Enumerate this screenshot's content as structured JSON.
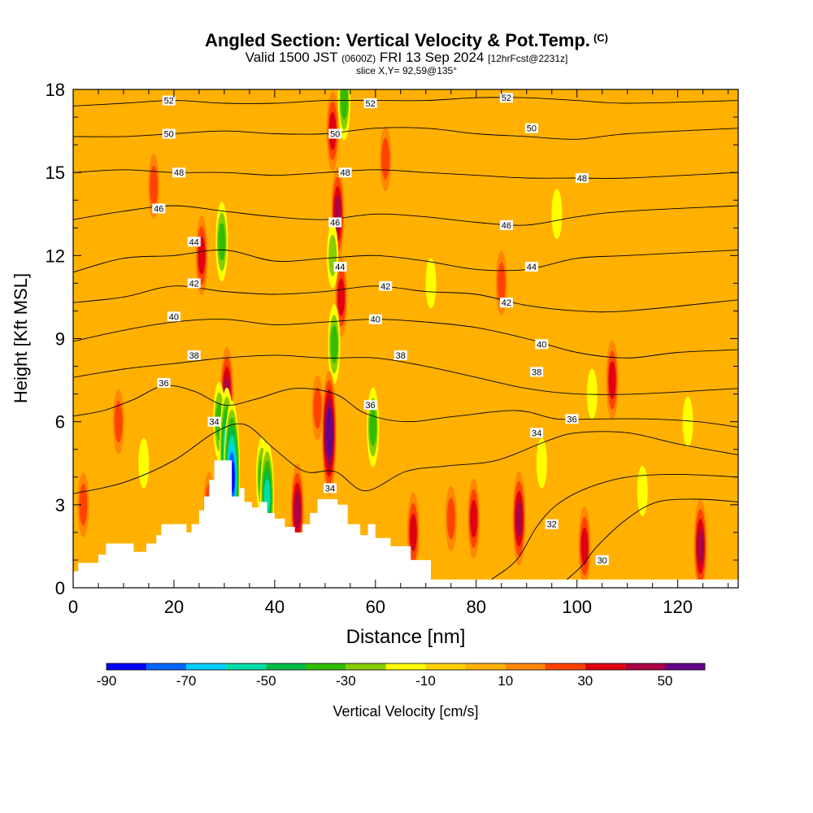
{
  "header": {
    "title": "Angled Section: Vertical Velocity & Pot.Temp.",
    "title_suffix": "(C)",
    "valid_main": "Valid 1500 JST",
    "valid_zulu": "(0600Z)",
    "valid_date": "FRI 13 Sep 2024",
    "forecast": "[12hrFcst@2231z]",
    "slice": "slice X,Y= 92,59@135°"
  },
  "chart_data": {
    "type": "heatmap",
    "xlabel": "Distance [nm]",
    "ylabel": "Height [Kft MSL]",
    "xlim": [
      0,
      132
    ],
    "ylim": [
      0,
      18
    ],
    "x_ticks": [
      0,
      20,
      40,
      60,
      80,
      100,
      120
    ],
    "y_ticks": [
      0,
      3,
      6,
      9,
      12,
      15,
      18
    ],
    "colorbar": {
      "label": "Vertical Velocity [cm/s]",
      "tick_labels": [
        "-90",
        "-70",
        "-50",
        "-30",
        "-10",
        "10",
        "30",
        "50"
      ],
      "tick_values": [
        -90,
        -70,
        -50,
        -30,
        -10,
        10,
        30,
        50
      ],
      "bins": [
        -90,
        -80,
        -70,
        -60,
        -50,
        -40,
        -30,
        -20,
        -10,
        0,
        10,
        20,
        30,
        40,
        50,
        60
      ],
      "colors": [
        "#0000ff",
        "#0066ff",
        "#00ccff",
        "#00ddaa",
        "#00bb44",
        "#33bb00",
        "#88cc00",
        "#ffff00",
        "#ffd000",
        "#ffb000",
        "#ff8800",
        "#ff4400",
        "#dd0011",
        "#aa0044",
        "#660088"
      ]
    },
    "velocity_cells": [
      {
        "x": 52.5,
        "y": 13.5,
        "value": 40
      },
      {
        "x": 53.2,
        "y": 10.5,
        "value": 30
      },
      {
        "x": 51.5,
        "y": 16.5,
        "value": 30
      },
      {
        "x": 51.8,
        "y": 8.8,
        "value": -30
      },
      {
        "x": 51.5,
        "y": 12.0,
        "value": -20
      },
      {
        "x": 53.8,
        "y": 17.6,
        "value": -30
      },
      {
        "x": 50.8,
        "y": 5.6,
        "value": 60
      },
      {
        "x": 48.5,
        "y": 6.5,
        "value": 20
      },
      {
        "x": 30.5,
        "y": 7.0,
        "value": 40
      },
      {
        "x": 29.0,
        "y": 6.0,
        "value": -30
      },
      {
        "x": 30.5,
        "y": 5.0,
        "value": -60
      },
      {
        "x": 31.5,
        "y": 4.0,
        "value": -80
      },
      {
        "x": 29.5,
        "y": 12.5,
        "value": -30
      },
      {
        "x": 25.5,
        "y": 12.0,
        "value": 30
      },
      {
        "x": 37.5,
        "y": 4.0,
        "value": -30
      },
      {
        "x": 38.5,
        "y": 3.3,
        "value": -50
      },
      {
        "x": 44.5,
        "y": 2.8,
        "value": 40
      },
      {
        "x": 88.5,
        "y": 2.5,
        "value": 40
      },
      {
        "x": 107,
        "y": 7.5,
        "value": 30
      },
      {
        "x": 103,
        "y": 7.0,
        "value": -10
      },
      {
        "x": 93,
        "y": 4.5,
        "value": -10
      },
      {
        "x": 101.5,
        "y": 1.5,
        "value": 30
      },
      {
        "x": 67.5,
        "y": 2.0,
        "value": 30
      },
      {
        "x": 79.5,
        "y": 2.5,
        "value": 30
      },
      {
        "x": 75,
        "y": 2.5,
        "value": 20
      },
      {
        "x": 9,
        "y": 6.0,
        "value": 20
      },
      {
        "x": 16,
        "y": 14.5,
        "value": 20
      },
      {
        "x": 62,
        "y": 15.5,
        "value": 20
      },
      {
        "x": 85,
        "y": 11.0,
        "value": 20
      },
      {
        "x": 113,
        "y": 3.5,
        "value": -10
      },
      {
        "x": 122,
        "y": 6.0,
        "value": -10
      },
      {
        "x": 27,
        "y": 3.0,
        "value": 20
      },
      {
        "x": 59.5,
        "y": 5.8,
        "value": -30
      },
      {
        "x": 124.5,
        "y": 1.5,
        "value": 40
      },
      {
        "x": 2,
        "y": 3.0,
        "value": 20
      },
      {
        "x": 14,
        "y": 4.5,
        "value": -10
      },
      {
        "x": 71,
        "y": 11.0,
        "value": -10
      },
      {
        "x": 96,
        "y": 13.5,
        "value": -10
      }
    ],
    "terrain": [
      {
        "x": 0,
        "y": 0.6
      },
      {
        "x": 1,
        "y": 0.9
      },
      {
        "x": 5,
        "y": 1.2
      },
      {
        "x": 6.5,
        "y": 1.6
      },
      {
        "x": 12,
        "y": 1.3
      },
      {
        "x": 14.5,
        "y": 1.6
      },
      {
        "x": 16.5,
        "y": 1.9
      },
      {
        "x": 17.5,
        "y": 2.3
      },
      {
        "x": 22.5,
        "y": 2.0
      },
      {
        "x": 23.5,
        "y": 2.3
      },
      {
        "x": 25,
        "y": 2.8
      },
      {
        "x": 26,
        "y": 3.3
      },
      {
        "x": 27,
        "y": 3.9
      },
      {
        "x": 28,
        "y": 4.6
      },
      {
        "x": 30,
        "y": 4.6
      },
      {
        "x": 31.5,
        "y": 3.3
      },
      {
        "x": 33,
        "y": 3.6
      },
      {
        "x": 34,
        "y": 3.1
      },
      {
        "x": 35.5,
        "y": 2.9
      },
      {
        "x": 37,
        "y": 3.1
      },
      {
        "x": 38.5,
        "y": 2.7
      },
      {
        "x": 40,
        "y": 2.5
      },
      {
        "x": 42,
        "y": 2.2
      },
      {
        "x": 44,
        "y": 2.0
      },
      {
        "x": 45.5,
        "y": 2.3
      },
      {
        "x": 47,
        "y": 2.7
      },
      {
        "x": 48.5,
        "y": 3.2
      },
      {
        "x": 52.5,
        "y": 3.0
      },
      {
        "x": 54.5,
        "y": 2.3
      },
      {
        "x": 57,
        "y": 1.9
      },
      {
        "x": 58.5,
        "y": 2.3
      },
      {
        "x": 60,
        "y": 1.8
      },
      {
        "x": 63,
        "y": 1.5
      },
      {
        "x": 67,
        "y": 1.0
      },
      {
        "x": 71,
        "y": 0.3
      },
      {
        "x": 132,
        "y": 0.3
      }
    ],
    "isentropes": [
      {
        "label": "30",
        "points": [
          [
            98,
            0.3
          ],
          [
            101,
            0.8
          ],
          [
            104,
            1.5
          ],
          [
            110,
            2.5
          ],
          [
            116,
            3.1
          ],
          [
            124,
            3.2
          ],
          [
            132,
            3.1
          ]
        ],
        "labels_at": [
          [
            105,
            1.0
          ]
        ]
      },
      {
        "label": "32",
        "points": [
          [
            83,
            0.3
          ],
          [
            88,
            1.0
          ],
          [
            92,
            2.2
          ],
          [
            96,
            3.0
          ],
          [
            102,
            3.6
          ],
          [
            110,
            4.0
          ],
          [
            120,
            4.1
          ],
          [
            132,
            4.0
          ]
        ],
        "labels_at": [
          [
            95,
            2.3
          ]
        ]
      },
      {
        "label": "34",
        "points": [
          [
            0,
            3.4
          ],
          [
            10,
            3.8
          ],
          [
            20,
            4.6
          ],
          [
            28,
            5.6
          ],
          [
            34,
            5.9
          ],
          [
            40,
            5.0
          ],
          [
            46,
            4.2
          ],
          [
            52,
            4.2
          ],
          [
            58,
            3.5
          ],
          [
            66,
            4.2
          ],
          [
            74,
            4.4
          ],
          [
            84,
            4.6
          ],
          [
            94,
            5.3
          ],
          [
            100,
            5.6
          ],
          [
            110,
            5.6
          ],
          [
            120,
            5.2
          ],
          [
            132,
            4.8
          ]
        ],
        "labels_at": [
          [
            28,
            6.0
          ],
          [
            51,
            3.6
          ],
          [
            92,
            5.6
          ]
        ]
      },
      {
        "label": "36",
        "points": [
          [
            0,
            6.2
          ],
          [
            6,
            6.4
          ],
          [
            12,
            6.8
          ],
          [
            18,
            7.3
          ],
          [
            24,
            7.1
          ],
          [
            30,
            6.6
          ],
          [
            36,
            6.8
          ],
          [
            44,
            7.2
          ],
          [
            52,
            7.0
          ],
          [
            58,
            6.3
          ],
          [
            66,
            6.0
          ],
          [
            76,
            6.2
          ],
          [
            88,
            6.4
          ],
          [
            96,
            6.1
          ],
          [
            104,
            6.1
          ],
          [
            114,
            6.1
          ],
          [
            124,
            6.0
          ],
          [
            132,
            5.8
          ]
        ],
        "labels_at": [
          [
            18,
            7.4
          ],
          [
            59,
            6.6
          ],
          [
            99,
            6.1
          ]
        ]
      },
      {
        "label": "38",
        "points": [
          [
            0,
            7.6
          ],
          [
            10,
            7.9
          ],
          [
            20,
            8.1
          ],
          [
            30,
            8.3
          ],
          [
            40,
            8.4
          ],
          [
            50,
            8.3
          ],
          [
            60,
            8.3
          ],
          [
            70,
            8.0
          ],
          [
            80,
            7.6
          ],
          [
            90,
            7.2
          ],
          [
            100,
            7.0
          ],
          [
            112,
            7.0
          ],
          [
            132,
            7.2
          ]
        ],
        "labels_at": [
          [
            24,
            8.4
          ],
          [
            65,
            8.4
          ],
          [
            92,
            7.8
          ]
        ]
      },
      {
        "label": "40",
        "points": [
          [
            0,
            8.9
          ],
          [
            10,
            9.3
          ],
          [
            20,
            9.6
          ],
          [
            30,
            9.7
          ],
          [
            40,
            9.5
          ],
          [
            50,
            9.6
          ],
          [
            60,
            9.7
          ],
          [
            70,
            9.6
          ],
          [
            80,
            9.4
          ],
          [
            90,
            9.0
          ],
          [
            100,
            8.5
          ],
          [
            110,
            8.3
          ],
          [
            120,
            8.5
          ],
          [
            132,
            8.6
          ]
        ],
        "labels_at": [
          [
            20,
            9.8
          ],
          [
            60,
            9.7
          ],
          [
            93,
            8.8
          ]
        ]
      },
      {
        "label": "42",
        "points": [
          [
            0,
            10.3
          ],
          [
            10,
            10.5
          ],
          [
            20,
            10.9
          ],
          [
            30,
            10.7
          ],
          [
            40,
            10.6
          ],
          [
            50,
            10.7
          ],
          [
            60,
            10.9
          ],
          [
            70,
            10.7
          ],
          [
            80,
            10.6
          ],
          [
            90,
            10.2
          ],
          [
            100,
            10.0
          ],
          [
            110,
            10.0
          ],
          [
            132,
            10.4
          ]
        ],
        "labels_at": [
          [
            24,
            11.0
          ],
          [
            62,
            10.9
          ],
          [
            86,
            10.3
          ]
        ]
      },
      {
        "label": "44",
        "points": [
          [
            0,
            11.4
          ],
          [
            10,
            11.9
          ],
          [
            20,
            12.0
          ],
          [
            30,
            12.2
          ],
          [
            40,
            11.8
          ],
          [
            50,
            11.9
          ],
          [
            60,
            12.0
          ],
          [
            70,
            11.8
          ],
          [
            80,
            11.5
          ],
          [
            90,
            11.5
          ],
          [
            100,
            11.9
          ],
          [
            110,
            12.0
          ],
          [
            132,
            12.2
          ]
        ],
        "labels_at": [
          [
            24,
            12.5
          ],
          [
            53,
            11.6
          ],
          [
            91,
            11.6
          ]
        ]
      },
      {
        "label": "46",
        "points": [
          [
            0,
            13.3
          ],
          [
            10,
            13.6
          ],
          [
            20,
            13.8
          ],
          [
            30,
            13.6
          ],
          [
            40,
            13.4
          ],
          [
            50,
            13.3
          ],
          [
            60,
            13.5
          ],
          [
            70,
            13.4
          ],
          [
            80,
            13.2
          ],
          [
            90,
            13.1
          ],
          [
            100,
            13.4
          ],
          [
            110,
            13.6
          ],
          [
            132,
            13.8
          ]
        ],
        "labels_at": [
          [
            17,
            13.7
          ],
          [
            52,
            13.2
          ],
          [
            86,
            13.1
          ]
        ]
      },
      {
        "label": "48",
        "points": [
          [
            0,
            15.0
          ],
          [
            10,
            15.1
          ],
          [
            20,
            15.0
          ],
          [
            30,
            15.0
          ],
          [
            40,
            14.9
          ],
          [
            50,
            15.0
          ],
          [
            60,
            15.1
          ],
          [
            70,
            15.0
          ],
          [
            80,
            14.9
          ],
          [
            90,
            14.8
          ],
          [
            100,
            14.8
          ],
          [
            110,
            14.8
          ],
          [
            132,
            15.0
          ]
        ],
        "labels_at": [
          [
            21,
            15.0
          ],
          [
            54,
            15.0
          ],
          [
            101,
            14.8
          ]
        ]
      },
      {
        "label": "50",
        "points": [
          [
            0,
            16.3
          ],
          [
            10,
            16.3
          ],
          [
            20,
            16.4
          ],
          [
            30,
            16.5
          ],
          [
            40,
            16.4
          ],
          [
            50,
            16.4
          ],
          [
            60,
            16.6
          ],
          [
            70,
            16.6
          ],
          [
            80,
            16.4
          ],
          [
            90,
            16.3
          ],
          [
            100,
            16.2
          ],
          [
            110,
            16.4
          ],
          [
            132,
            16.6
          ]
        ],
        "labels_at": [
          [
            19,
            16.4
          ],
          [
            52,
            16.4
          ],
          [
            91,
            16.6
          ]
        ]
      },
      {
        "label": "52",
        "points": [
          [
            0,
            17.4
          ],
          [
            10,
            17.5
          ],
          [
            20,
            17.6
          ],
          [
            30,
            17.5
          ],
          [
            40,
            17.5
          ],
          [
            50,
            17.6
          ],
          [
            60,
            17.6
          ],
          [
            70,
            17.6
          ],
          [
            80,
            17.7
          ],
          [
            90,
            17.7
          ],
          [
            100,
            17.6
          ],
          [
            110,
            17.5
          ],
          [
            132,
            17.6
          ]
        ],
        "labels_at": [
          [
            19,
            17.6
          ],
          [
            59,
            17.5
          ],
          [
            86,
            17.7
          ]
        ]
      }
    ]
  }
}
